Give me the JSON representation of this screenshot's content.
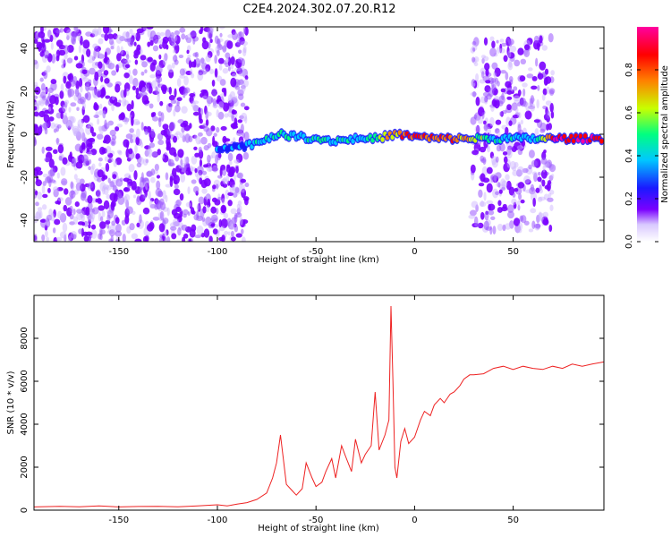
{
  "title": "C2E4.2024.302.07.20.R12",
  "colors": {
    "spectral_cmap": [
      "#ffffff",
      "#7a00ff",
      "#1a1aff",
      "#00c8ff",
      "#00ff80",
      "#c8ff00",
      "#ff8000",
      "#ff0000",
      "#ff00a0"
    ],
    "snr_line": "#ee2222"
  },
  "chart_data": [
    {
      "type": "heatmap",
      "name": "spectrogram",
      "xlabel": "Height of straight line (km)",
      "ylabel": "Frequency (Hz)",
      "xlim": [
        -193,
        96
      ],
      "ylim": [
        -50,
        50
      ],
      "xticks": [
        "-150",
        "-100",
        "-50",
        "0",
        "50"
      ],
      "yticks": [
        "-40",
        "-20",
        "0",
        "20",
        "40"
      ],
      "colorbar": {
        "label": "Normalized spectral amplitude",
        "range": [
          0,
          1
        ],
        "ticks": [
          "0.0",
          "0.2",
          "0.4",
          "0.6",
          "0.8"
        ]
      },
      "signal_track": [
        {
          "x": -100,
          "y": -6,
          "amp": 0.35
        },
        {
          "x": -90,
          "y": -6,
          "amp": 0.4
        },
        {
          "x": -80,
          "y": -4,
          "amp": 0.45
        },
        {
          "x": -70,
          "y": 0,
          "amp": 0.5
        },
        {
          "x": -60,
          "y": -1,
          "amp": 0.45
        },
        {
          "x": -50,
          "y": -2,
          "amp": 0.5
        },
        {
          "x": -40,
          "y": -3,
          "amp": 0.5
        },
        {
          "x": -30,
          "y": -2,
          "amp": 0.5
        },
        {
          "x": -20,
          "y": -2,
          "amp": 0.55
        },
        {
          "x": -10,
          "y": 0,
          "amp": 0.8
        },
        {
          "x": 0,
          "y": -1,
          "amp": 0.85
        },
        {
          "x": 10,
          "y": -2,
          "amp": 0.85
        },
        {
          "x": 25,
          "y": -2,
          "amp": 0.8
        },
        {
          "x": 40,
          "y": -2,
          "amp": 0.45
        },
        {
          "x": 60,
          "y": -2,
          "amp": 0.45
        },
        {
          "x": 70,
          "y": -2,
          "amp": 0.95
        },
        {
          "x": 96,
          "y": -2,
          "amp": 0.95
        }
      ],
      "noise_regions": [
        {
          "x0": -193,
          "x1": -85,
          "y0": -50,
          "y1": 50,
          "density": "high"
        },
        {
          "x0": 29,
          "x1": 70,
          "y0": -45,
          "y1": 45,
          "density": "medium"
        }
      ]
    },
    {
      "type": "line",
      "name": "snr",
      "xlabel": "Height of straight line (km)",
      "ylabel": "SNR (10 * v/v)",
      "xlim": [
        -193,
        96
      ],
      "ylim": [
        0,
        10000
      ],
      "xticks": [
        "-150",
        "-100",
        "-50",
        "0",
        "50"
      ],
      "yticks": [
        "0",
        "2000",
        "4000",
        "6000",
        "8000"
      ],
      "x": [
        -193,
        -180,
        -170,
        -160,
        -150,
        -140,
        -130,
        -120,
        -110,
        -100,
        -95,
        -90,
        -85,
        -80,
        -75,
        -72,
        -70,
        -68,
        -65,
        -62,
        -60,
        -57,
        -55,
        -52,
        -50,
        -47,
        -45,
        -42,
        -40,
        -37,
        -35,
        -32,
        -30,
        -27,
        -25,
        -22,
        -20,
        -18,
        -15,
        -13,
        -12,
        -11,
        -10,
        -9,
        -7,
        -5,
        -3,
        0,
        3,
        5,
        8,
        10,
        13,
        15,
        18,
        20,
        23,
        25,
        28,
        30,
        35,
        40,
        45,
        50,
        55,
        60,
        65,
        70,
        75,
        80,
        85,
        90,
        96
      ],
      "y": [
        150,
        180,
        160,
        200,
        150,
        170,
        180,
        160,
        200,
        250,
        200,
        280,
        350,
        500,
        800,
        1500,
        2200,
        3500,
        1200,
        900,
        700,
        1000,
        2200,
        1500,
        1100,
        1300,
        1800,
        2400,
        1500,
        3000,
        2500,
        1800,
        3300,
        2200,
        2600,
        3000,
        5500,
        2800,
        3500,
        4200,
        9500,
        6000,
        2000,
        1500,
        3200,
        3800,
        3100,
        3400,
        4200,
        4600,
        4400,
        4900,
        5200,
        5000,
        5400,
        5500,
        5800,
        6100,
        6300,
        6300,
        6350,
        6600,
        6700,
        6550,
        6700,
        6600,
        6550,
        6700,
        6600,
        6800,
        6700,
        6800,
        6900
      ]
    }
  ]
}
